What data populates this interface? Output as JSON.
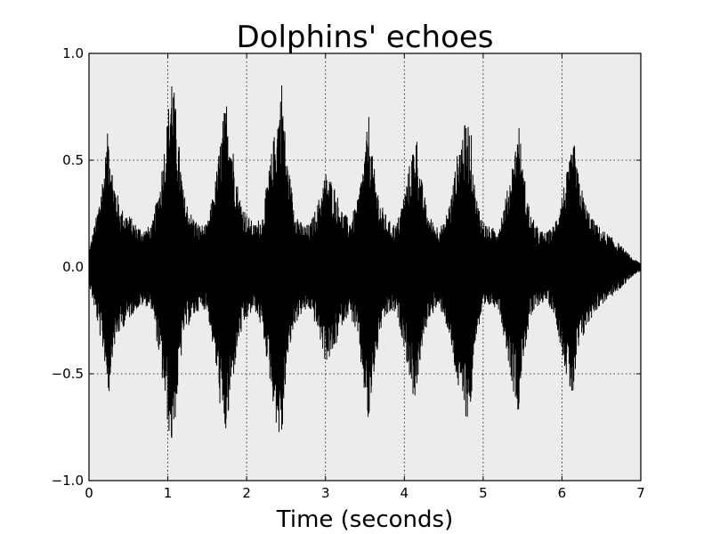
{
  "chart_data": {
    "type": "line",
    "title": "Dolphins' echoes",
    "xlabel": "Time (seconds)",
    "ylabel": "",
    "xlim": [
      0,
      7
    ],
    "ylim": [
      -1.0,
      1.0
    ],
    "x_ticks": [
      0,
      1,
      2,
      3,
      4,
      5,
      6,
      7
    ],
    "x_tick_labels": [
      "0",
      "1",
      "2",
      "3",
      "4",
      "5",
      "6",
      "7"
    ],
    "y_ticks": [
      1.0,
      0.5,
      0.0,
      -0.5,
      -1.0
    ],
    "y_tick_labels": [
      "1.0",
      "0.5",
      "0.0",
      "−0.5",
      "−1.0"
    ],
    "grid": true,
    "background_color": "#ececec",
    "line_color": "#000000",
    "series": [
      {
        "x": [
          0.0,
          0.1,
          0.2,
          0.25,
          0.3,
          0.4,
          0.5,
          0.6,
          0.7,
          0.8,
          0.9,
          1.0,
          1.05,
          1.1,
          1.15,
          1.2,
          1.3,
          1.4,
          1.5,
          1.6,
          1.7,
          1.75,
          1.8,
          1.9,
          2.0,
          2.1,
          2.2,
          2.3,
          2.4,
          2.45,
          2.5,
          2.6,
          2.7,
          2.8,
          2.9,
          3.0,
          3.1,
          3.2,
          3.3,
          3.4,
          3.5,
          3.55,
          3.6,
          3.7,
          3.8,
          3.9,
          4.0,
          4.1,
          4.15,
          4.2,
          4.3,
          4.4,
          4.5,
          4.6,
          4.7,
          4.8,
          4.85,
          4.9,
          5.0,
          5.1,
          5.2,
          5.3,
          5.4,
          5.45,
          5.5,
          5.6,
          5.7,
          5.8,
          5.9,
          6.0,
          6.1,
          6.15,
          6.2,
          6.3,
          6.4,
          6.5,
          6.6,
          6.7,
          6.8,
          6.9,
          7.0
        ],
        "upper": [
          0.08,
          0.25,
          0.5,
          0.68,
          0.45,
          0.28,
          0.25,
          0.2,
          0.18,
          0.2,
          0.4,
          0.72,
          0.95,
          0.75,
          0.55,
          0.35,
          0.25,
          0.2,
          0.2,
          0.4,
          0.7,
          0.8,
          0.65,
          0.35,
          0.25,
          0.2,
          0.25,
          0.5,
          0.75,
          0.9,
          0.55,
          0.3,
          0.2,
          0.2,
          0.3,
          0.45,
          0.4,
          0.28,
          0.22,
          0.3,
          0.55,
          0.72,
          0.5,
          0.3,
          0.22,
          0.2,
          0.35,
          0.55,
          0.65,
          0.45,
          0.25,
          0.2,
          0.2,
          0.35,
          0.6,
          0.7,
          0.62,
          0.35,
          0.22,
          0.18,
          0.2,
          0.35,
          0.55,
          0.7,
          0.48,
          0.25,
          0.18,
          0.16,
          0.2,
          0.35,
          0.5,
          0.6,
          0.45,
          0.3,
          0.22,
          0.18,
          0.15,
          0.12,
          0.08,
          0.04,
          0.02
        ],
        "lower": [
          -0.08,
          -0.25,
          -0.45,
          -0.62,
          -0.4,
          -0.3,
          -0.25,
          -0.2,
          -0.18,
          -0.2,
          -0.45,
          -0.75,
          -0.85,
          -0.7,
          -0.5,
          -0.32,
          -0.25,
          -0.2,
          -0.2,
          -0.45,
          -0.78,
          -0.8,
          -0.6,
          -0.35,
          -0.25,
          -0.2,
          -0.3,
          -0.55,
          -0.8,
          -0.82,
          -0.5,
          -0.28,
          -0.22,
          -0.2,
          -0.3,
          -0.45,
          -0.42,
          -0.28,
          -0.22,
          -0.32,
          -0.62,
          -0.78,
          -0.55,
          -0.3,
          -0.22,
          -0.22,
          -0.38,
          -0.6,
          -0.62,
          -0.45,
          -0.25,
          -0.2,
          -0.22,
          -0.4,
          -0.62,
          -0.72,
          -0.65,
          -0.35,
          -0.22,
          -0.18,
          -0.2,
          -0.4,
          -0.62,
          -0.68,
          -0.45,
          -0.25,
          -0.18,
          -0.16,
          -0.22,
          -0.4,
          -0.6,
          -0.62,
          -0.42,
          -0.3,
          -0.22,
          -0.18,
          -0.15,
          -0.12,
          -0.08,
          -0.04,
          -0.02
        ]
      }
    ]
  }
}
